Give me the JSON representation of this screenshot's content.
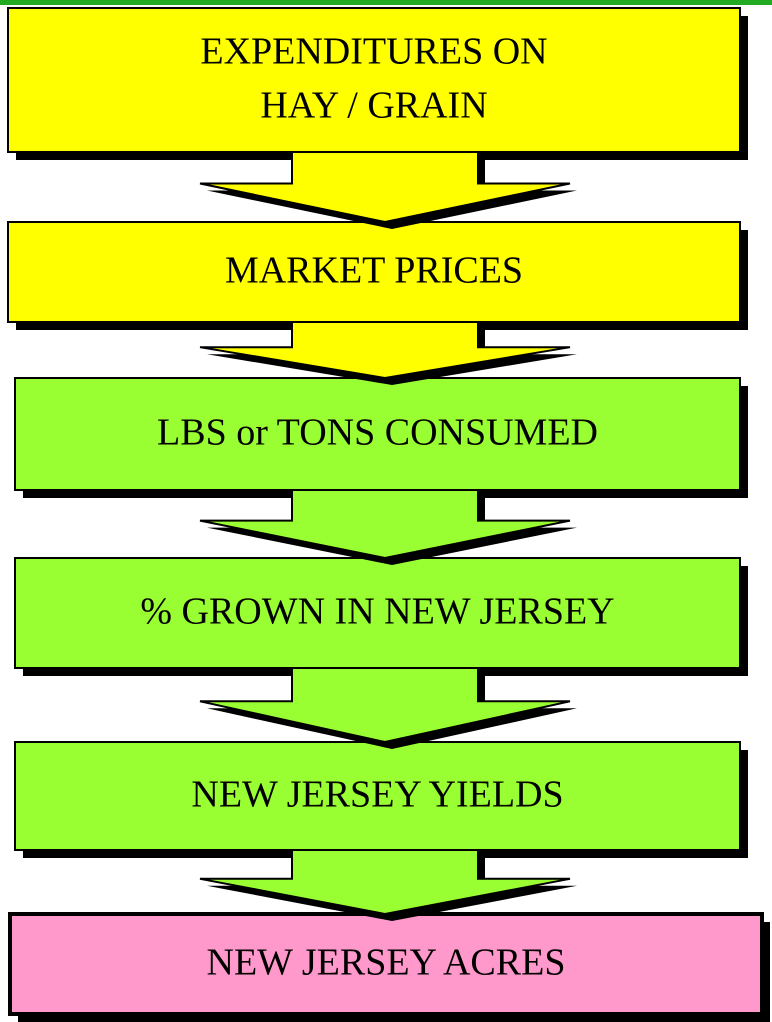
{
  "nodes": [
    {
      "lines": [
        "EXPENDITURES ON",
        "HAY / GRAIN"
      ]
    },
    {
      "lines": [
        "MARKET PRICES"
      ]
    },
    {
      "lines": [
        "LBS or TONS CONSUMED"
      ]
    },
    {
      "lines": [
        "% GROWN IN NEW JERSEY"
      ]
    },
    {
      "lines": [
        "NEW JERSEY YIELDS"
      ]
    },
    {
      "lines": [
        "NEW JERSEY ACRES"
      ]
    }
  ]
}
